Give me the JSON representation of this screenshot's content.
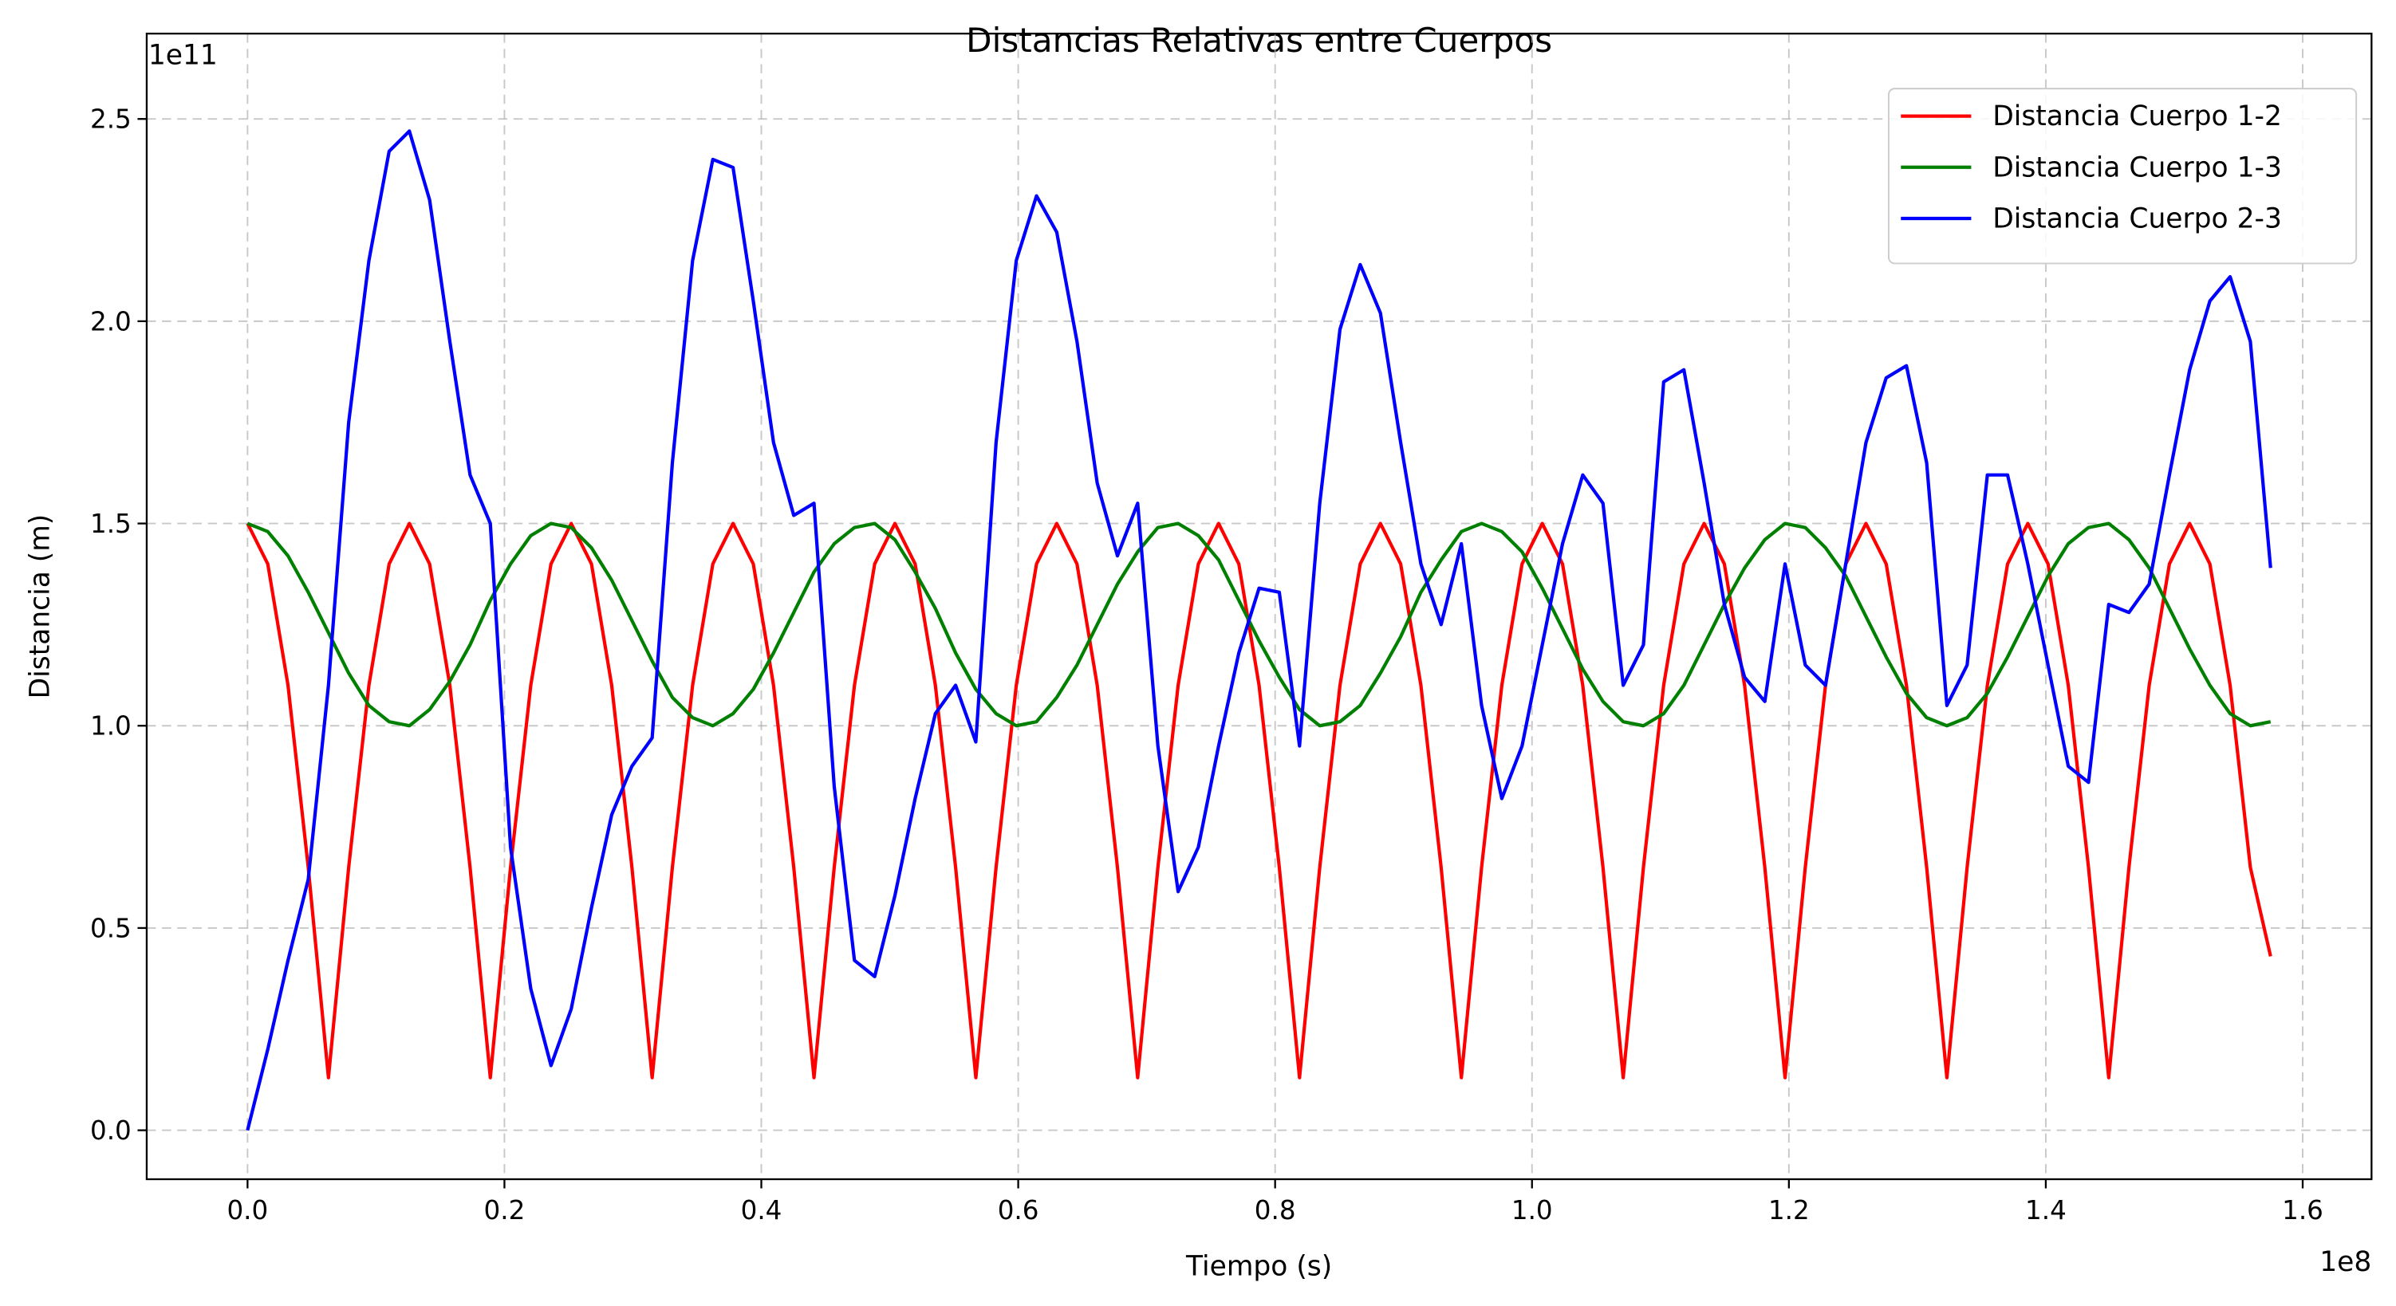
{
  "chart_data": {
    "type": "line",
    "title": "Distancias Relativas entre Cuerpos",
    "x_label": "Tiempo (s)",
    "y_label": "Distancia (m)",
    "x_offset_label": "1e8",
    "y_offset_label": "1e11",
    "grid": true,
    "legend": "upper right",
    "xlim": [
      -7850000,
      165360000
    ],
    "ylim": [
      -12100000000,
      271100000000
    ],
    "xticks": [
      {
        "value": 0,
        "label": "0.0"
      },
      {
        "value": 20000000,
        "label": "0.2"
      },
      {
        "value": 40000000,
        "label": "0.4"
      },
      {
        "value": 60000000,
        "label": "0.6"
      },
      {
        "value": 80000000,
        "label": "0.8"
      },
      {
        "value": 100000000,
        "label": "1.0"
      },
      {
        "value": 120000000,
        "label": "1.2"
      },
      {
        "value": 140000000,
        "label": "1.4"
      },
      {
        "value": 160000000,
        "label": "1.6"
      }
    ],
    "yticks": [
      {
        "value": 0,
        "label": "0.0"
      },
      {
        "value": 50000000000,
        "label": "0.5"
      },
      {
        "value": 100000000000,
        "label": "1.0"
      },
      {
        "value": 150000000000,
        "label": "1.5"
      },
      {
        "value": 200000000000,
        "label": "2.0"
      },
      {
        "value": 250000000000,
        "label": "2.5"
      }
    ],
    "x": [
      0,
      1575000.0,
      3150000.0,
      4725000.0,
      6300000.0,
      7875000.0,
      9450000.0,
      11025000.0,
      12600000.0,
      14175000.0,
      15750000.0,
      17325000.0,
      18900000.0,
      20475000.0,
      22050000.0,
      23625000.0,
      25200000.0,
      26775000.0,
      28350000.0,
      29925000.0,
      31500000.0,
      33075000.0,
      34650000.0,
      36225000.0,
      37800000.0,
      39375000.0,
      40950000.0,
      42525000.0,
      44100000.0,
      45675000.0,
      47250000.0,
      48825000.0,
      50400000.0,
      51975000.0,
      53550000.0,
      55125000.0,
      56700000.0,
      58275000.0,
      59850000.0,
      61425000.0,
      63000000.0,
      64575000.0,
      66150000.0,
      67725000.0,
      69300000.0,
      70875000.0,
      72450000.0,
      74025000.0,
      75600000.0,
      77175000.0,
      78750000.0,
      80325000.0,
      81900000.0,
      83475000.0,
      85050000.0,
      86625000.0,
      88200000.0,
      89775000.0,
      91350000.0,
      92925000.0,
      94500000.0,
      96075000.0,
      97650000.0,
      99225000.0,
      100800000.0,
      102375000.0,
      103950000.0,
      105525000.0,
      107100000.0,
      108675000.0,
      110250000.0,
      111825000.0,
      113400000.0,
      114975000.0,
      116550000.0,
      118125000.0,
      119700000.0,
      121275000.0,
      122850000.0,
      124425000.0,
      126000000.0,
      127575000.0,
      129150000.0,
      130725000.0,
      132300000.0,
      133875000.0,
      135450000.0,
      137025000.0,
      138600000.0,
      140175000.0,
      141750000.0,
      143325000.0,
      144900000.0,
      146475000.0,
      148050000.0,
      149625000.0,
      151200000.0,
      152775000.0,
      154350000.0,
      155925000.0,
      157500000.0
    ],
    "series": [
      {
        "name": "Distancia Cuerpo 1-2",
        "color": "#ff0000",
        "values": [
          150000000000.0,
          140000000000.0,
          110000000000.0,
          65000000000.0,
          13000000000.0,
          65000000000.0,
          110000000000.0,
          140000000000.0,
          150000000000.0,
          140000000000.0,
          110000000000.0,
          65000000000.0,
          13000000000.0,
          65000000000.0,
          110000000000.0,
          140000000000.0,
          150000000000.0,
          140000000000.0,
          110000000000.0,
          65000000000.0,
          13000000000.0,
          65000000000.0,
          110000000000.0,
          140000000000.0,
          150000000000.0,
          140000000000.0,
          110000000000.0,
          65000000000.0,
          13000000000.0,
          65000000000.0,
          110000000000.0,
          140000000000.0,
          150000000000.0,
          140000000000.0,
          110000000000.0,
          65000000000.0,
          13000000000.0,
          65000000000.0,
          110000000000.0,
          140000000000.0,
          150000000000.0,
          140000000000.0,
          110000000000.0,
          65000000000.0,
          13000000000.0,
          65000000000.0,
          110000000000.0,
          140000000000.0,
          150000000000.0,
          140000000000.0,
          110000000000.0,
          65000000000.0,
          13000000000.0,
          65000000000.0,
          110000000000.0,
          140000000000.0,
          150000000000.0,
          140000000000.0,
          110000000000.0,
          65000000000.0,
          13000000000.0,
          65000000000.0,
          110000000000.0,
          140000000000.0,
          150000000000.0,
          140000000000.0,
          110000000000.0,
          65000000000.0,
          13000000000.0,
          65000000000.0,
          110000000000.0,
          140000000000.0,
          150000000000.0,
          140000000000.0,
          110000000000.0,
          65000000000.0,
          13000000000.0,
          65000000000.0,
          110000000000.0,
          140000000000.0,
          150000000000.0,
          140000000000.0,
          110000000000.0,
          65000000000.0,
          13000000000.0,
          65000000000.0,
          110000000000.0,
          140000000000.0,
          150000000000.0,
          140000000000.0,
          110000000000.0,
          65000000000.0,
          13000000000.0,
          65000000000.0,
          110000000000.0,
          140000000000.0,
          150000000000.0,
          140000000000.0,
          110000000000.0,
          65000000000.0,
          43000000000.0
        ]
      },
      {
        "name": "Distancia Cuerpo 1-3",
        "color": "#008000",
        "values": [
          150000000000.0,
          148000000000.0,
          142000000000.0,
          133000000000.0,
          123000000000.0,
          113000000000.0,
          105000000000.0,
          101000000000.0,
          100000000000.0,
          104000000000.0,
          111000000000.0,
          120000000000.0,
          131000000000.0,
          140000000000.0,
          147000000000.0,
          150000000000.0,
          149000000000.0,
          144000000000.0,
          136000000000.0,
          126000000000.0,
          116000000000.0,
          107000000000.0,
          102000000000.0,
          100000000000.0,
          103000000000.0,
          109000000000.0,
          118000000000.0,
          128000000000.0,
          138000000000.0,
          145000000000.0,
          149000000000.0,
          150000000000.0,
          146000000000.0,
          138000000000.0,
          129000000000.0,
          118000000000.0,
          109000000000.0,
          103000000000.0,
          100000000000.0,
          101000000000.0,
          107000000000.0,
          115000000000.0,
          125000000000.0,
          135000000000.0,
          143000000000.0,
          149000000000.0,
          150000000000.0,
          147000000000.0,
          141000000000.0,
          131000000000.0,
          121000000000.0,
          112000000000.0,
          104000000000.0,
          100000000000.0,
          101000000000.0,
          105000000000.0,
          113000000000.0,
          122000000000.0,
          133000000000.0,
          141000000000.0,
          148000000000.0,
          150000000000.0,
          148000000000.0,
          143000000000.0,
          134000000000.0,
          124000000000.0,
          114000000000.0,
          106000000000.0,
          101000000000.0,
          100000000000.0,
          103000000000.0,
          110000000000.0,
          120000000000.0,
          130000000000.0,
          139000000000.0,
          146000000000.0,
          150000000000.0,
          149000000000.0,
          144000000000.0,
          137000000000.0,
          127000000000.0,
          117000000000.0,
          108000000000.0,
          102000000000.0,
          100000000000.0,
          102000000000.0,
          108000000000.0,
          117000000000.0,
          127000000000.0,
          137000000000.0,
          145000000000.0,
          149000000000.0,
          150000000000.0,
          146000000000.0,
          139000000000.0,
          129000000000.0,
          119000000000.0,
          110000000000.0,
          103000000000.0,
          100000000000.0,
          101000000000.0
        ]
      },
      {
        "name": "Distancia Cuerpo 2-3",
        "color": "#0000ff",
        "values": [
          0,
          20000000000.0,
          42000000000.0,
          62000000000.0,
          110000000000.0,
          175000000000.0,
          215000000000.0,
          242000000000.0,
          247000000000.0,
          230000000000.0,
          195000000000.0,
          162000000000.0,
          150000000000.0,
          70000000000.0,
          35000000000.0,
          16000000000.0,
          30000000000.0,
          55000000000.0,
          78000000000.0,
          90000000000.0,
          97000000000.0,
          165000000000.0,
          215000000000.0,
          240000000000.0,
          238000000000.0,
          205000000000.0,
          170000000000.0,
          152000000000.0,
          155000000000.0,
          85000000000.0,
          42000000000.0,
          38000000000.0,
          58000000000.0,
          82000000000.0,
          103000000000.0,
          110000000000.0,
          96000000000.0,
          170000000000.0,
          215000000000.0,
          231000000000.0,
          222000000000.0,
          195000000000.0,
          160000000000.0,
          142000000000.0,
          155000000000.0,
          95000000000.0,
          59000000000.0,
          70000000000.0,
          95000000000.0,
          118000000000.0,
          134000000000.0,
          133000000000.0,
          95000000000.0,
          155000000000.0,
          198000000000.0,
          214000000000.0,
          202000000000.0,
          170000000000.0,
          140000000000.0,
          125000000000.0,
          145000000000.0,
          105000000000.0,
          82000000000.0,
          95000000000.0,
          120000000000.0,
          145000000000.0,
          162000000000.0,
          155000000000.0,
          110000000000.0,
          120000000000.0,
          185000000000.0,
          188000000000.0,
          160000000000.0,
          130000000000.0,
          112000000000.0,
          106000000000.0,
          140000000000.0,
          115000000000.0,
          110000000000.0,
          140000000000.0,
          170000000000.0,
          186000000000.0,
          189000000000.0,
          165000000000.0,
          105000000000.0,
          115000000000.0,
          162000000000.0,
          162000000000.0,
          140000000000.0,
          115000000000.0,
          90000000000.0,
          86000000000.0,
          130000000000.0,
          128000000000.0,
          135000000000.0,
          162000000000.0,
          188000000000.0,
          205000000000.0,
          211000000000.0,
          195000000000.0,
          139000000000.0
        ]
      }
    ]
  }
}
